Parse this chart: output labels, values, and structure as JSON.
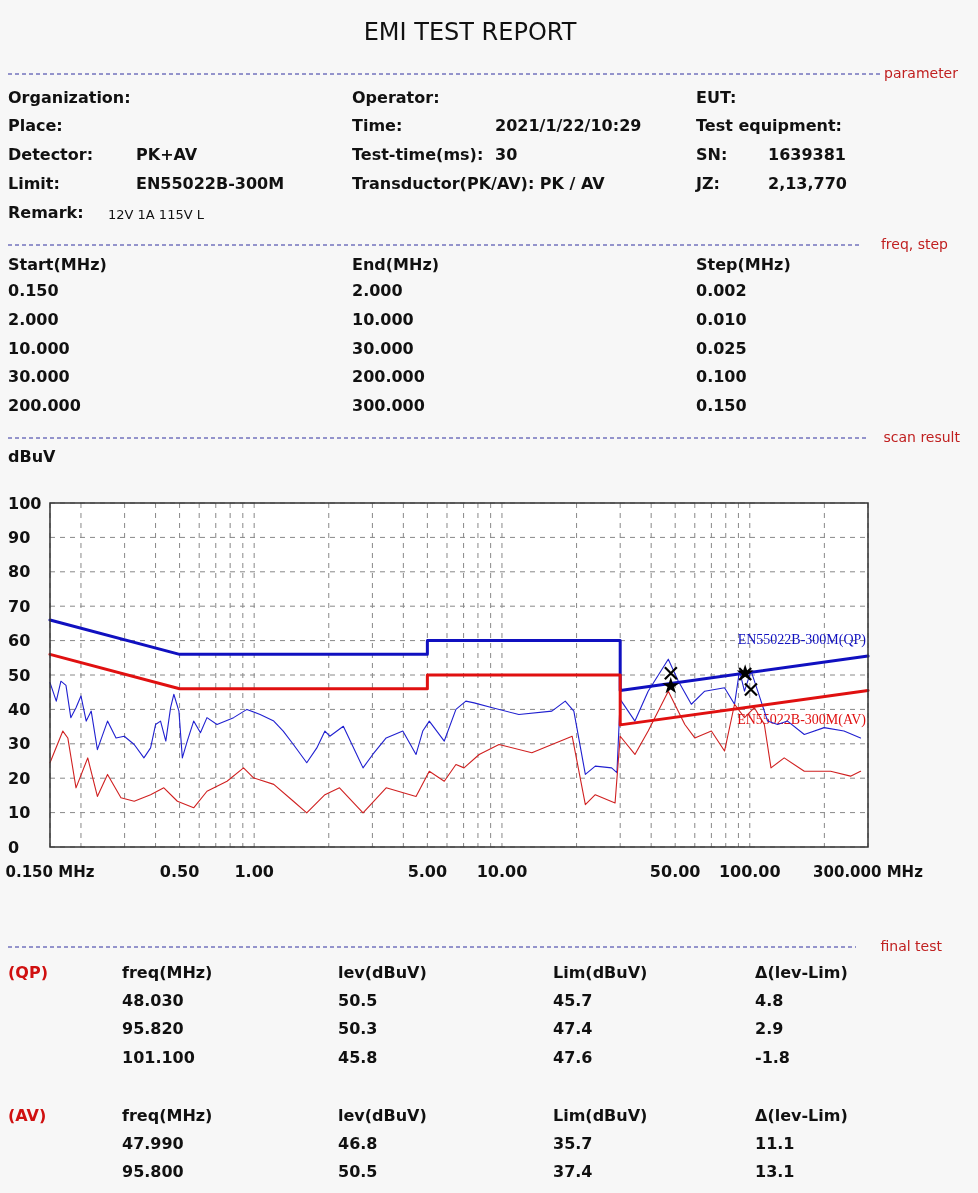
{
  "chart_data": {
    "type": "line",
    "title": "EMI TEST REPORT",
    "ylabel": "dBuV",
    "log": "x",
    "grid": true,
    "legend": false,
    "xlim": [
      0.15,
      300
    ],
    "ylim": [
      0,
      100
    ],
    "xticks": [
      {
        "value": 0.15,
        "label": "0.150 MHz"
      },
      {
        "value": 0.2,
        "label": null
      },
      {
        "value": 0.3,
        "label": null
      },
      {
        "value": 0.4,
        "label": null
      },
      {
        "value": 0.5,
        "label": "0.50"
      },
      {
        "value": 0.6,
        "label": null
      },
      {
        "value": 0.7,
        "label": null
      },
      {
        "value": 0.8,
        "label": null
      },
      {
        "value": 0.9,
        "label": null
      },
      {
        "value": 1,
        "label": "1.00"
      },
      {
        "value": 2,
        "label": null
      },
      {
        "value": 3,
        "label": null
      },
      {
        "value": 4,
        "label": null
      },
      {
        "value": 5,
        "label": "5.00"
      },
      {
        "value": 6,
        "label": null
      },
      {
        "value": 7,
        "label": null
      },
      {
        "value": 8,
        "label": null
      },
      {
        "value": 9,
        "label": null
      },
      {
        "value": 10,
        "label": "10.00"
      },
      {
        "value": 20,
        "label": null
      },
      {
        "value": 30,
        "label": null
      },
      {
        "value": 40,
        "label": null
      },
      {
        "value": 50,
        "label": "50.00"
      },
      {
        "value": 60,
        "label": null
      },
      {
        "value": 70,
        "label": null
      },
      {
        "value": 80,
        "label": null
      },
      {
        "value": 90,
        "label": null
      },
      {
        "value": 100,
        "label": "100.00"
      },
      {
        "value": 200,
        "label": null
      },
      {
        "value": 300,
        "label": "300.000 MHz"
      }
    ],
    "yticks": [
      0,
      10,
      20,
      30,
      40,
      50,
      60,
      70,
      80,
      90,
      100
    ],
    "series": [
      {
        "color": "#2020d0",
        "marker": "none",
        "x": [
          0.15,
          0.159,
          0.166,
          0.174,
          0.182,
          0.191,
          0.2,
          0.21,
          0.22,
          0.233,
          0.256,
          0.277,
          0.299,
          0.328,
          0.359,
          0.382,
          0.4,
          0.419,
          0.44,
          0.46,
          0.474,
          0.497,
          0.513,
          0.537,
          0.57,
          0.607,
          0.645,
          0.708,
          0.826,
          0.935,
          1.057,
          1.2,
          1.31,
          1.44,
          1.63,
          1.79,
          1.93,
          2.02,
          2.29,
          2.75,
          3.01,
          3.41,
          3.98,
          4.5,
          4.79,
          5.09,
          5.85,
          6.52,
          7.15,
          7.72,
          9.15,
          11.7,
          15.9,
          18,
          19.5,
          21.7,
          23.8,
          27.7,
          29.1,
          30,
          34.4,
          38.9,
          46.9,
          51.4,
          58.1,
          65.8,
          79.1,
          86.8,
          90.9,
          95.2,
          101.2,
          107.7,
          118,
          129.5,
          142,
          166,
          199.6,
          240,
          280
        ],
        "values": [
          47.8,
          42.4,
          48.2,
          47,
          37.6,
          40.5,
          43.9,
          36.6,
          39.5,
          28.3,
          36.6,
          31.7,
          32.2,
          29.8,
          25.9,
          28.8,
          35.6,
          36.6,
          30.8,
          40.5,
          44.4,
          39.5,
          25.9,
          30.8,
          36.6,
          33.2,
          37.6,
          35.6,
          37.6,
          40,
          38.5,
          36.6,
          33.7,
          29.8,
          24.5,
          28.8,
          33.7,
          32.2,
          35.1,
          23,
          26.9,
          31.7,
          33.7,
          26.9,
          33.7,
          36.6,
          30.8,
          40,
          42.4,
          41.9,
          40.5,
          38.5,
          39.5,
          42.4,
          39.5,
          21.1,
          23.5,
          23,
          21.6,
          42.9,
          36.6,
          45.3,
          54.6,
          48.3,
          41.5,
          45.3,
          46.3,
          41.5,
          51.2,
          45.3,
          51.2,
          45.3,
          36.6,
          35.6,
          36.6,
          32.7,
          34.7,
          33.7,
          31.7
        ]
      },
      {
        "color": "#d02020",
        "marker": "none",
        "x": [
          0.15,
          0.169,
          0.177,
          0.191,
          0.213,
          0.233,
          0.256,
          0.29,
          0.328,
          0.382,
          0.432,
          0.49,
          0.57,
          0.645,
          0.777,
          0.906,
          0.994,
          1.2,
          1.44,
          1.63,
          1.93,
          2.21,
          2.75,
          3.41,
          4.5,
          5.09,
          5.85,
          6.52,
          7.03,
          8.09,
          9.73,
          13.2,
          19.2,
          21.7,
          23.8,
          28.6,
          30,
          34.4,
          38.9,
          46.9,
          54.7,
          60,
          70,
          79.1,
          86.8,
          95.2,
          104.4,
          114.5,
          121.8,
          137.7,
          166,
          212,
          255,
          280
        ],
        "values": [
          24.5,
          33.7,
          31.7,
          17.2,
          25.9,
          14.7,
          21.1,
          14.3,
          13.3,
          15.2,
          17.2,
          13.3,
          11.4,
          16.2,
          19.1,
          23,
          20.1,
          18.2,
          13.3,
          9.9,
          15.2,
          17.2,
          9.9,
          17.2,
          14.7,
          22,
          19.1,
          24,
          23,
          26.9,
          29.8,
          27.4,
          32.2,
          12.3,
          15.2,
          12.8,
          32.2,
          26.9,
          33.7,
          45.3,
          35.6,
          31.7,
          33.7,
          27.9,
          41.5,
          37.6,
          40.5,
          35.6,
          23,
          25.9,
          22,
          22,
          20.6,
          22
        ]
      },
      {
        "name": "EN55022B-300M(QP)",
        "color": "#1010c0",
        "marker": "none",
        "x": [
          0.15,
          0.5,
          5,
          5,
          30,
          30,
          300
        ],
        "values": [
          66,
          56,
          56,
          60,
          60,
          45.5,
          55.5
        ]
      },
      {
        "name": "EN55022B-300M(AV)",
        "color": "#e01010",
        "marker": "none",
        "x": [
          0.15,
          0.5,
          5,
          5,
          30,
          30,
          300
        ],
        "values": [
          56,
          46,
          46,
          50,
          50,
          35.5,
          45.5
        ]
      },
      {
        "type": "scatter",
        "color": "#000000",
        "marker": "cross",
        "x": [
          48.03,
          95.82,
          101.1
        ],
        "values": [
          50.5,
          50.3,
          45.8
        ]
      },
      {
        "type": "scatter",
        "color": "#000000",
        "marker": "star",
        "x": [
          47.99,
          95.8
        ],
        "values": [
          46.8,
          50.5
        ]
      }
    ],
    "annotations": [
      "parameter",
      "Organization:",
      "Operator:",
      "EUT:",
      "Place:",
      "Time:",
      "2021/1/22/10:29",
      "Test equipment:",
      "Detector:",
      "PK+AV",
      "Test-time(ms):",
      "30",
      "SN:",
      "1639381",
      "Limit:",
      "EN55022B-300M",
      "Transductor(PK/AV): PK  /  AV",
      "JZ:",
      "2,13,770",
      "Remark:",
      "12V 1A 115V L",
      "freq, step",
      "Start(MHz)",
      "End(MHz)",
      "Step(MHz)",
      "0.150",
      "2.000",
      "0.002",
      "2.000",
      "10.000",
      "0.010",
      "10.000",
      "30.000",
      "0.025",
      "30.000",
      "200.000",
      "0.100",
      "200.000",
      "300.000",
      "0.150",
      "scan result",
      "final test",
      "(QP)",
      "freq(MHz)",
      "lev(dBuV)",
      "Lim(dBuV)",
      "Δ(lev-Lim)",
      "48.030",
      "50.5",
      "45.7",
      "4.8",
      "95.820",
      "50.3",
      "47.4",
      "2.9",
      "101.100",
      "45.8",
      "47.6",
      "-1.8",
      "(AV)",
      "freq(MHz)",
      "lev(dBuV)",
      "Lim(dBuV)",
      "Δ(lev-Lim)",
      "47.990",
      "46.8",
      "35.7",
      "11.1",
      "95.800",
      "50.5",
      "37.4",
      "13.1"
    ]
  }
}
